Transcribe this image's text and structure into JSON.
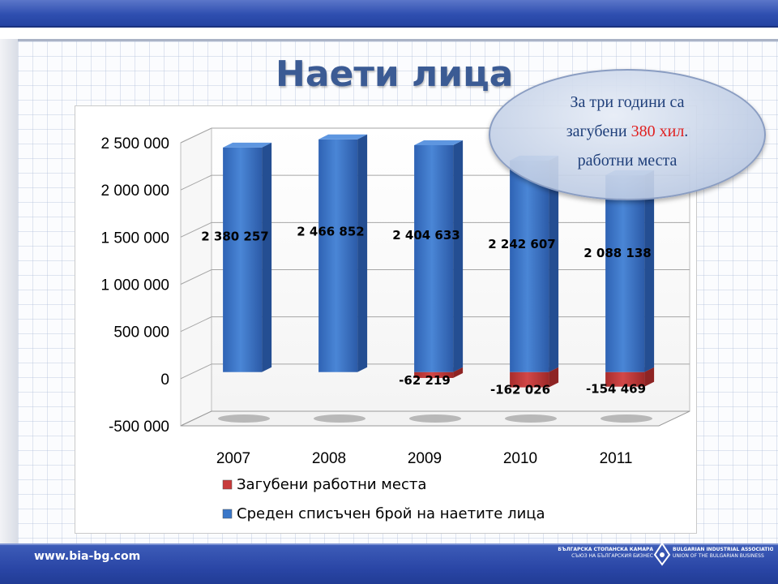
{
  "slide": {
    "title": "Наети лица",
    "callout": {
      "line1": "За три години са",
      "line2_prefix": "загубени ",
      "line2_highlight": "380 хил",
      "line2_suffix": ".",
      "line3": "работни места"
    },
    "footer": {
      "url": "www.bia-bg.com",
      "org_bg": "БЪЛГАРСКА СТОПАНСКА КАМАРА",
      "org_bg_sub": "СЪЮЗ НА БЪЛГАРСКИЯ БИЗНЕС",
      "org_en": "BULGARIAN INDUSTRIAL ASSOCIATION",
      "org_en_sub": "UNION OF THE BULGARIAN BUSINESS"
    }
  },
  "colors": {
    "employed": "#3a77c8",
    "lost": "#c83a3a",
    "title": "#3b5b94",
    "callout_text": "#1f3f7a",
    "callout_highlight": "#e02020"
  },
  "chart_data": {
    "type": "bar",
    "style": "3d-stacked-column",
    "categories": [
      "2007",
      "2008",
      "2009",
      "2010",
      "2011"
    ],
    "series": [
      {
        "name": "Загубени работни места",
        "values": [
          null,
          null,
          -62219,
          -162026,
          -154469
        ],
        "labels": [
          "",
          "",
          "-62 219",
          "-162 026",
          "-154 469"
        ]
      },
      {
        "name": "Среден списъчен брой на наетите лица",
        "values": [
          2380257,
          2466852,
          2404633,
          2242607,
          2088138
        ],
        "labels": [
          "2 380 257",
          "2 466 852",
          "2 404 633",
          "2 242 607",
          "2 088 138"
        ]
      }
    ],
    "ylim": [
      -500000,
      2500000
    ],
    "yticks": [
      2500000,
      2000000,
      1500000,
      1000000,
      500000,
      0,
      -500000
    ],
    "ytick_labels": [
      "2 500 000",
      "2 000 000",
      "1 500 000",
      "1 000 000",
      "500 000",
      "0",
      "-500 000"
    ],
    "grid": true,
    "legend_position": "bottom"
  }
}
